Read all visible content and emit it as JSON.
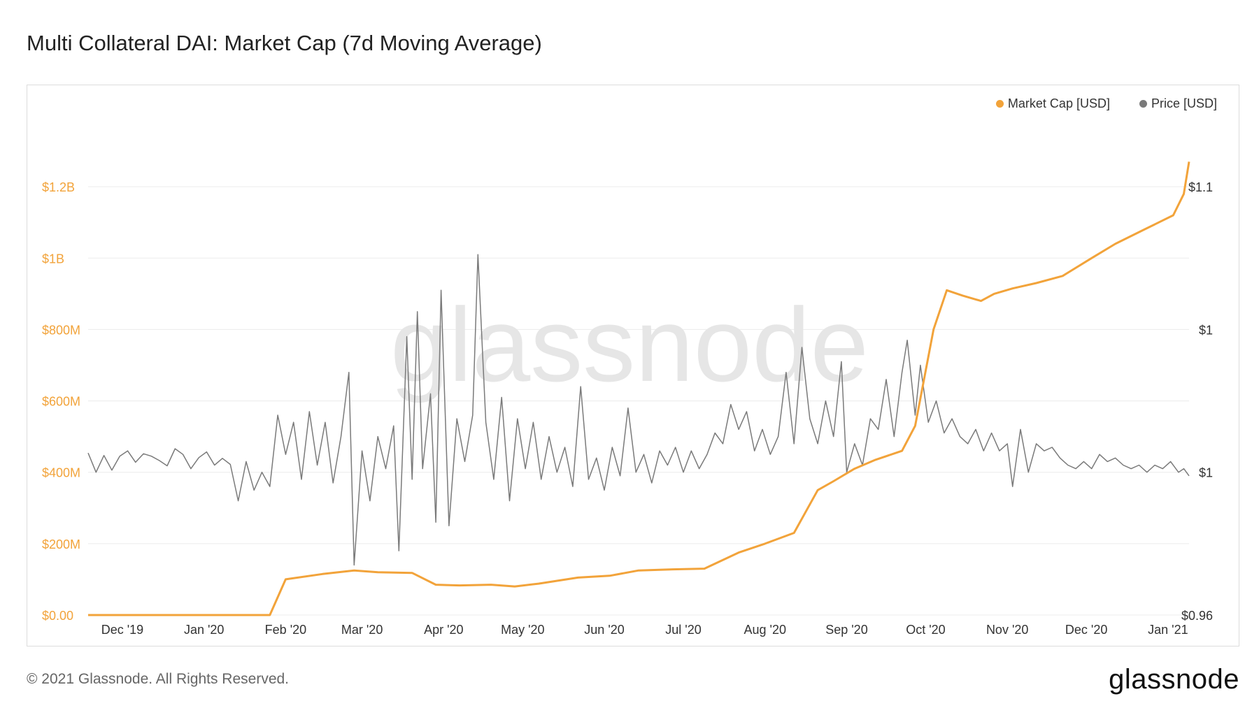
{
  "header": {
    "title": "Multi Collateral DAI: Market Cap (7d Moving Average)"
  },
  "footer": {
    "copyright": "© 2021 Glassnode. All Rights Reserved.",
    "logo_text": "glassnode"
  },
  "watermark": "glassnode",
  "colors": {
    "market_cap": "#f2a33a",
    "price": "#7a7a7a",
    "grid": "#ececec",
    "axis_left": "#f2a33a",
    "axis_right": "#333333"
  },
  "chart_data": {
    "type": "line",
    "title": "Multi Collateral DAI: Market Cap (7d Moving Average)",
    "grid": true,
    "legend_position": "top-right",
    "x_ticks": [
      "Dec '19",
      "Jan '20",
      "Feb '20",
      "Mar '20",
      "Apr '20",
      "May '20",
      "Jun '20",
      "Jul '20",
      "Aug '20",
      "Sep '20",
      "Oct '20",
      "Nov '20",
      "Dec '20",
      "Jan '21"
    ],
    "x_range": [
      "2019-11-18",
      "2021-01-09"
    ],
    "y_left": {
      "ticks": [
        "$0.00",
        "$200M",
        "$400M",
        "$600M",
        "$800M",
        "$1B",
        "$1.2B"
      ],
      "values": [
        0,
        200000000,
        400000000,
        600000000,
        800000000,
        1000000000,
        1200000000
      ],
      "range": [
        0,
        1400000000
      ]
    },
    "y_right": {
      "ticks": [
        "$0.96",
        "$1",
        "$1",
        "$1.1"
      ],
      "tick_values": [
        0.96,
        1.0,
        1.04,
        1.08
      ],
      "range": [
        0.96,
        1.1
      ]
    },
    "series": [
      {
        "name": "Market Cap [USD]",
        "axis": "left",
        "points": [
          [
            "2019-11-18",
            0
          ],
          [
            "2020-01-26",
            0
          ],
          [
            "2020-02-01",
            100000000
          ],
          [
            "2020-02-15",
            115000000
          ],
          [
            "2020-02-27",
            125000000
          ],
          [
            "2020-03-07",
            120000000
          ],
          [
            "2020-03-20",
            118000000
          ],
          [
            "2020-03-29",
            85000000
          ],
          [
            "2020-04-07",
            83000000
          ],
          [
            "2020-04-19",
            85000000
          ],
          [
            "2020-04-28",
            80000000
          ],
          [
            "2020-05-07",
            88000000
          ],
          [
            "2020-05-22",
            105000000
          ],
          [
            "2020-06-03",
            110000000
          ],
          [
            "2020-06-14",
            125000000
          ],
          [
            "2020-06-27",
            128000000
          ],
          [
            "2020-07-09",
            130000000
          ],
          [
            "2020-07-22",
            175000000
          ],
          [
            "2020-08-01",
            200000000
          ],
          [
            "2020-08-12",
            230000000
          ],
          [
            "2020-08-21",
            350000000
          ],
          [
            "2020-08-27",
            375000000
          ],
          [
            "2020-09-04",
            410000000
          ],
          [
            "2020-09-12",
            435000000
          ],
          [
            "2020-09-22",
            460000000
          ],
          [
            "2020-09-27",
            530000000
          ],
          [
            "2020-10-04",
            800000000
          ],
          [
            "2020-10-09",
            910000000
          ],
          [
            "2020-10-15",
            895000000
          ],
          [
            "2020-10-22",
            880000000
          ],
          [
            "2020-10-27",
            900000000
          ],
          [
            "2020-11-03",
            915000000
          ],
          [
            "2020-11-12",
            930000000
          ],
          [
            "2020-11-22",
            950000000
          ],
          [
            "2020-12-03",
            1000000000
          ],
          [
            "2020-12-12",
            1040000000
          ],
          [
            "2020-12-23",
            1080000000
          ],
          [
            "2021-01-03",
            1120000000
          ],
          [
            "2021-01-07",
            1180000000
          ],
          [
            "2021-01-09",
            1270000000
          ]
        ]
      },
      {
        "name": "Price [USD]",
        "axis": "right",
        "points": [
          [
            "2019-11-18",
            1.0054
          ],
          [
            "2019-11-21",
            1.0
          ],
          [
            "2019-11-24",
            1.0047
          ],
          [
            "2019-11-27",
            1.0006
          ],
          [
            "2019-11-30",
            1.0045
          ],
          [
            "2019-12-03",
            1.006
          ],
          [
            "2019-12-06",
            1.0028
          ],
          [
            "2019-12-09",
            1.0052
          ],
          [
            "2019-12-12",
            1.0045
          ],
          [
            "2019-12-15",
            1.0033
          ],
          [
            "2019-12-18",
            1.0018
          ],
          [
            "2019-12-21",
            1.0066
          ],
          [
            "2019-12-24",
            1.005
          ],
          [
            "2019-12-27",
            1.001
          ],
          [
            "2019-12-30",
            1.0041
          ],
          [
            "2020-01-02",
            1.0057
          ],
          [
            "2020-01-05",
            1.002
          ],
          [
            "2020-01-08",
            1.0039
          ],
          [
            "2020-01-11",
            1.0022
          ],
          [
            "2020-01-14",
            0.992
          ],
          [
            "2020-01-17",
            1.003
          ],
          [
            "2020-01-20",
            0.995
          ],
          [
            "2020-01-23",
            1.0
          ],
          [
            "2020-01-26",
            0.996
          ],
          [
            "2020-01-29",
            1.016
          ],
          [
            "2020-02-01",
            1.005
          ],
          [
            "2020-02-04",
            1.014
          ],
          [
            "2020-02-07",
            0.998
          ],
          [
            "2020-02-10",
            1.017
          ],
          [
            "2020-02-13",
            1.002
          ],
          [
            "2020-02-16",
            1.014
          ],
          [
            "2020-02-19",
            0.997
          ],
          [
            "2020-02-22",
            1.01
          ],
          [
            "2020-02-25",
            1.028
          ],
          [
            "2020-02-27",
            0.974
          ],
          [
            "2020-03-01",
            1.006
          ],
          [
            "2020-03-04",
            0.992
          ],
          [
            "2020-03-07",
            1.01
          ],
          [
            "2020-03-10",
            1.001
          ],
          [
            "2020-03-13",
            1.013
          ],
          [
            "2020-03-15",
            0.978
          ],
          [
            "2020-03-18",
            1.038
          ],
          [
            "2020-03-20",
            0.998
          ],
          [
            "2020-03-22",
            1.045
          ],
          [
            "2020-03-24",
            1.001
          ],
          [
            "2020-03-27",
            1.022
          ],
          [
            "2020-03-29",
            0.986
          ],
          [
            "2020-03-31",
            1.051
          ],
          [
            "2020-04-03",
            0.985
          ],
          [
            "2020-04-06",
            1.015
          ],
          [
            "2020-04-09",
            1.003
          ],
          [
            "2020-04-12",
            1.016
          ],
          [
            "2020-04-14",
            1.061
          ],
          [
            "2020-04-17",
            1.014
          ],
          [
            "2020-04-20",
            0.998
          ],
          [
            "2020-04-23",
            1.021
          ],
          [
            "2020-04-26",
            0.992
          ],
          [
            "2020-04-29",
            1.015
          ],
          [
            "2020-05-02",
            1.001
          ],
          [
            "2020-05-05",
            1.014
          ],
          [
            "2020-05-08",
            0.998
          ],
          [
            "2020-05-11",
            1.01
          ],
          [
            "2020-05-14",
            1.0
          ],
          [
            "2020-05-17",
            1.007
          ],
          [
            "2020-05-20",
            0.996
          ],
          [
            "2020-05-23",
            1.024
          ],
          [
            "2020-05-26",
            0.998
          ],
          [
            "2020-05-29",
            1.004
          ],
          [
            "2020-06-01",
            0.995
          ],
          [
            "2020-06-04",
            1.007
          ],
          [
            "2020-06-07",
            0.999
          ],
          [
            "2020-06-10",
            1.018
          ],
          [
            "2020-06-13",
            1.0
          ],
          [
            "2020-06-16",
            1.005
          ],
          [
            "2020-06-19",
            0.997
          ],
          [
            "2020-06-22",
            1.006
          ],
          [
            "2020-06-25",
            1.002
          ],
          [
            "2020-06-28",
            1.007
          ],
          [
            "2020-07-01",
            1.0
          ],
          [
            "2020-07-04",
            1.006
          ],
          [
            "2020-07-07",
            1.001
          ],
          [
            "2020-07-10",
            1.005
          ],
          [
            "2020-07-13",
            1.011
          ],
          [
            "2020-07-16",
            1.008
          ],
          [
            "2020-07-19",
            1.019
          ],
          [
            "2020-07-22",
            1.012
          ],
          [
            "2020-07-25",
            1.017
          ],
          [
            "2020-07-28",
            1.006
          ],
          [
            "2020-07-31",
            1.012
          ],
          [
            "2020-08-03",
            1.005
          ],
          [
            "2020-08-06",
            1.01
          ],
          [
            "2020-08-09",
            1.028
          ],
          [
            "2020-08-12",
            1.008
          ],
          [
            "2020-08-15",
            1.035
          ],
          [
            "2020-08-18",
            1.015
          ],
          [
            "2020-08-21",
            1.008
          ],
          [
            "2020-08-24",
            1.02
          ],
          [
            "2020-08-27",
            1.01
          ],
          [
            "2020-08-30",
            1.031
          ],
          [
            "2020-09-01",
            1.0
          ],
          [
            "2020-09-04",
            1.008
          ],
          [
            "2020-09-07",
            1.002
          ],
          [
            "2020-09-10",
            1.015
          ],
          [
            "2020-09-13",
            1.012
          ],
          [
            "2020-09-16",
            1.026
          ],
          [
            "2020-09-19",
            1.01
          ],
          [
            "2020-09-22",
            1.028
          ],
          [
            "2020-09-24",
            1.037
          ],
          [
            "2020-09-27",
            1.016
          ],
          [
            "2020-09-29",
            1.03
          ],
          [
            "2020-10-02",
            1.014
          ],
          [
            "2020-10-05",
            1.02
          ],
          [
            "2020-10-08",
            1.011
          ],
          [
            "2020-10-11",
            1.015
          ],
          [
            "2020-10-14",
            1.01
          ],
          [
            "2020-10-17",
            1.008
          ],
          [
            "2020-10-20",
            1.012
          ],
          [
            "2020-10-23",
            1.006
          ],
          [
            "2020-10-26",
            1.011
          ],
          [
            "2020-10-29",
            1.006
          ],
          [
            "2020-11-01",
            1.008
          ],
          [
            "2020-11-03",
            0.996
          ],
          [
            "2020-11-06",
            1.012
          ],
          [
            "2020-11-09",
            1.0
          ],
          [
            "2020-11-12",
            1.008
          ],
          [
            "2020-11-15",
            1.006
          ],
          [
            "2020-11-18",
            1.007
          ],
          [
            "2020-11-21",
            1.004
          ],
          [
            "2020-11-24",
            1.002
          ],
          [
            "2020-11-27",
            1.001
          ],
          [
            "2020-11-30",
            1.003
          ],
          [
            "2020-12-03",
            1.001
          ],
          [
            "2020-12-06",
            1.005
          ],
          [
            "2020-12-09",
            1.003
          ],
          [
            "2020-12-12",
            1.004
          ],
          [
            "2020-12-15",
            1.002
          ],
          [
            "2020-12-18",
            1.001
          ],
          [
            "2020-12-21",
            1.002
          ],
          [
            "2020-12-24",
            1.0
          ],
          [
            "2020-12-27",
            1.002
          ],
          [
            "2020-12-30",
            1.001
          ],
          [
            "2021-01-02",
            1.003
          ],
          [
            "2021-01-05",
            1.0
          ],
          [
            "2021-01-07",
            1.001
          ],
          [
            "2021-01-09",
            0.999
          ]
        ]
      }
    ]
  }
}
